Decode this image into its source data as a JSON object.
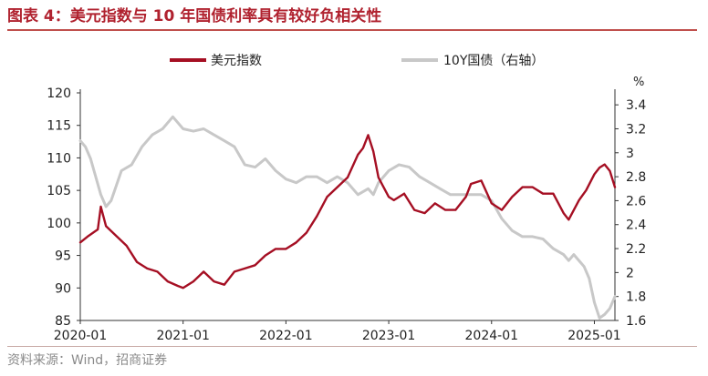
{
  "figure": {
    "title": "图表 4：美元指数与 10 年国债利率具有较好负相关性",
    "source": "资料来源：Wind，招商证券"
  },
  "chart_data": {
    "type": "line",
    "title": "美元指数与 10 年国债利率具有较好负相关性",
    "legend_position": "top",
    "x_ticks": [
      "2020-01",
      "2021-01",
      "2022-01",
      "2023-01",
      "2024-01",
      "2025-01"
    ],
    "x_tick_values": [
      2020.0,
      2021.0,
      2022.0,
      2023.0,
      2024.0,
      2025.0
    ],
    "xlim": [
      2020.0,
      2025.2
    ],
    "left_axis": {
      "ylim": [
        85,
        120
      ],
      "ticks": [
        85,
        90,
        95,
        100,
        105,
        110,
        115,
        120
      ]
    },
    "right_axis": {
      "unit": "%",
      "ylim": [
        1.6,
        3.5
      ],
      "ticks": [
        1.6,
        1.8,
        2,
        2.2,
        2.4,
        2.6,
        2.8,
        3,
        3.2,
        3.4
      ]
    },
    "series": [
      {
        "name": "美元指数",
        "axis": "left",
        "color": "#a50f23",
        "x": [
          2020.0,
          2020.08,
          2020.17,
          2020.2,
          2020.25,
          2020.35,
          2020.45,
          2020.55,
          2020.65,
          2020.75,
          2020.85,
          2020.95,
          2021.0,
          2021.1,
          2021.2,
          2021.3,
          2021.4,
          2021.5,
          2021.6,
          2021.7,
          2021.8,
          2021.9,
          2022.0,
          2022.1,
          2022.2,
          2022.3,
          2022.4,
          2022.5,
          2022.6,
          2022.7,
          2022.75,
          2022.8,
          2022.85,
          2022.9,
          2023.0,
          2023.05,
          2023.15,
          2023.25,
          2023.35,
          2023.45,
          2023.55,
          2023.65,
          2023.75,
          2023.8,
          2023.9,
          2024.0,
          2024.1,
          2024.2,
          2024.3,
          2024.4,
          2024.5,
          2024.6,
          2024.7,
          2024.75,
          2024.85,
          2024.92,
          2025.0,
          2025.05,
          2025.1,
          2025.15,
          2025.2
        ],
        "values": [
          97,
          98,
          99,
          102.5,
          99.5,
          98,
          96.5,
          94,
          93,
          92.5,
          91,
          90.3,
          90,
          91,
          92.5,
          91,
          90.5,
          92.5,
          93,
          93.5,
          95,
          96,
          96,
          97,
          98.5,
          101,
          104,
          105.5,
          107,
          110.5,
          111.5,
          113.5,
          111,
          107,
          104,
          103.5,
          104.5,
          102,
          101.5,
          103,
          102,
          102,
          104,
          106,
          106.5,
          103,
          102,
          104,
          105.5,
          105.5,
          104.5,
          104.5,
          101.5,
          100.5,
          103.5,
          105,
          107.5,
          108.5,
          109,
          108,
          105.5
        ]
      },
      {
        "name": "10Y国债（右轴）",
        "axis": "right",
        "color": "#c8c8c8",
        "x": [
          2020.0,
          2020.05,
          2020.1,
          2020.15,
          2020.2,
          2020.25,
          2020.3,
          2020.4,
          2020.5,
          2020.6,
          2020.7,
          2020.8,
          2020.9,
          2021.0,
          2021.1,
          2021.2,
          2021.3,
          2021.4,
          2021.5,
          2021.6,
          2021.7,
          2021.8,
          2021.9,
          2022.0,
          2022.1,
          2022.2,
          2022.3,
          2022.4,
          2022.5,
          2022.6,
          2022.7,
          2022.8,
          2022.85,
          2022.9,
          2023.0,
          2023.1,
          2023.2,
          2023.3,
          2023.4,
          2023.5,
          2023.6,
          2023.7,
          2023.8,
          2023.9,
          2024.0,
          2024.1,
          2024.2,
          2024.3,
          2024.4,
          2024.5,
          2024.6,
          2024.7,
          2024.75,
          2024.8,
          2024.9,
          2024.95,
          2025.0,
          2025.05,
          2025.1,
          2025.15,
          2025.2
        ],
        "values": [
          3.1,
          3.05,
          2.95,
          2.8,
          2.65,
          2.55,
          2.6,
          2.85,
          2.9,
          3.05,
          3.15,
          3.2,
          3.3,
          3.2,
          3.18,
          3.2,
          3.15,
          3.1,
          3.05,
          2.9,
          2.88,
          2.95,
          2.85,
          2.78,
          2.75,
          2.8,
          2.8,
          2.75,
          2.8,
          2.75,
          2.65,
          2.7,
          2.65,
          2.75,
          2.85,
          2.9,
          2.88,
          2.8,
          2.75,
          2.7,
          2.65,
          2.65,
          2.65,
          2.65,
          2.6,
          2.45,
          2.35,
          2.3,
          2.3,
          2.28,
          2.2,
          2.15,
          2.1,
          2.15,
          2.05,
          1.95,
          1.75,
          1.62,
          1.65,
          1.7,
          1.8
        ]
      }
    ]
  }
}
